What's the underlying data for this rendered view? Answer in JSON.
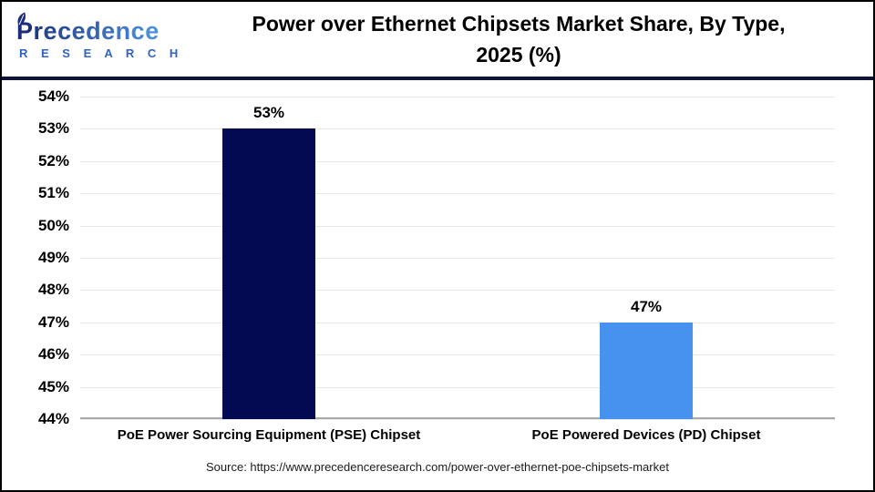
{
  "header": {
    "logo": {
      "name_text": "Precedence",
      "sub_text": "R E S E A R C H",
      "color_start": "#1d2d7c",
      "color_end": "#4a8fdd",
      "sub_color": "#2f62c4"
    },
    "title_line1": "Power over Ethernet Chipsets Market Share, By Type,",
    "title_line2": "2025 (%)"
  },
  "chart_data": {
    "type": "bar",
    "title": "Power over Ethernet Chipsets Market Share, By Type, 2025 (%)",
    "categories": [
      "PoE Power Sourcing Equipment (PSE) Chipset",
      "PoE Powered Devices (PD) Chipset"
    ],
    "values": [
      53,
      47
    ],
    "value_labels": [
      "53%",
      "47%"
    ],
    "bar_colors": [
      "#030a52",
      "#4892ef"
    ],
    "xlabel": "",
    "ylabel": "",
    "ylim": [
      44,
      54
    ],
    "ytick_step": 1,
    "ytick_suffix": "%",
    "grid": "horizontal",
    "legend": "none"
  },
  "footer": {
    "source_text": "Source: https://www.precedenceresearch.com/power-over-ethernet-poe-chipsets-market"
  },
  "style": {
    "divider_color": "#0e1338",
    "gridline_color": "#e8e8e8",
    "axis_line_color": "#a9a9a9"
  }
}
